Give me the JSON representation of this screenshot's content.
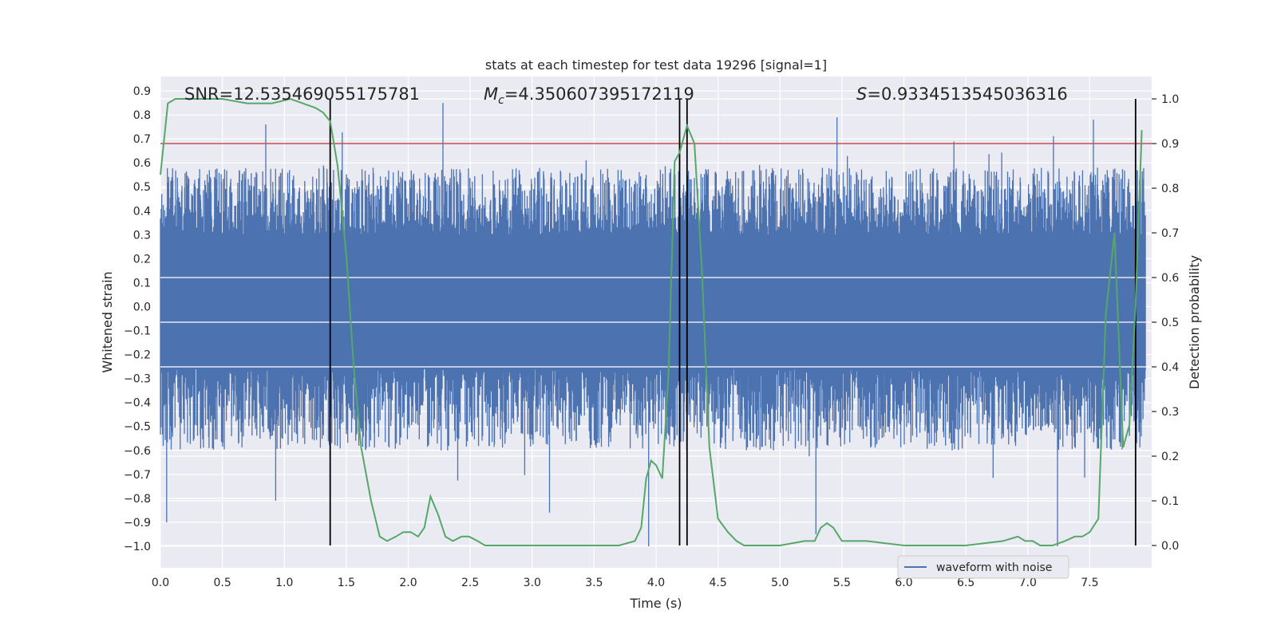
{
  "chart_data": {
    "type": "line",
    "title": "stats at each timestep for test data 19296 [signal=1]",
    "xlabel": "Time (s)",
    "ylabel": "Whitened strain",
    "y2label": "Detection probability",
    "xlim": [
      0.0,
      8.0
    ],
    "ylim": [
      -1.09,
      0.96
    ],
    "y2lim": [
      -0.05,
      1.05
    ],
    "x_ticks": [
      "0.0",
      "0.5",
      "1.0",
      "1.5",
      "2.0",
      "2.5",
      "3.0",
      "3.5",
      "4.0",
      "4.5",
      "5.0",
      "5.5",
      "6.0",
      "6.5",
      "7.0",
      "7.5"
    ],
    "y_ticks": [
      "0.9",
      "0.8",
      "0.7",
      "0.6",
      "0.5",
      "0.4",
      "0.3",
      "0.2",
      "0.1",
      "0.0",
      "−0.1",
      "−0.2",
      "−0.3",
      "−0.4",
      "−0.5",
      "−0.6",
      "−0.7",
      "−0.8",
      "−0.9",
      "−1.0"
    ],
    "y2_ticks": [
      "1.0",
      "0.9",
      "0.8",
      "0.7",
      "0.6",
      "0.5",
      "0.4",
      "0.3",
      "0.2",
      "0.1",
      "0.0"
    ],
    "annotations": {
      "snr": "SNR=12.535469055175781",
      "mc_symbol": "M",
      "mc_sub": "c",
      "mc_value": "=4.350607395172119",
      "s_symbol": "S",
      "s_value": "=0.9334513545036316"
    },
    "legend": {
      "label": "waveform with noise",
      "position": "lower-right"
    },
    "threshold_y2": 0.9,
    "vertical_lines_x": [
      1.37,
      4.19,
      4.25,
      7.87
    ],
    "waveform": {
      "name": "waveform with noise",
      "band_upper": 0.3,
      "band_lower": -0.26,
      "sample_peaks": [
        {
          "x": 0.05,
          "y": -0.9
        },
        {
          "x": 0.85,
          "y": 0.76
        },
        {
          "x": 0.93,
          "y": -0.81
        },
        {
          "x": 2.28,
          "y": 0.85
        },
        {
          "x": 2.6,
          "y": -0.54
        },
        {
          "x": 3.14,
          "y": -0.86
        },
        {
          "x": 3.94,
          "y": -1.0
        },
        {
          "x": 5.29,
          "y": -0.95
        },
        {
          "x": 5.46,
          "y": 0.79
        },
        {
          "x": 7.24,
          "y": -1.0
        },
        {
          "x": 7.53,
          "y": 0.78
        }
      ]
    },
    "series": [
      {
        "name": "Detection probability",
        "axis": "right",
        "x": [
          0.0,
          0.06,
          0.12,
          0.3,
          0.5,
          0.7,
          0.9,
          1.05,
          1.15,
          1.25,
          1.31,
          1.37,
          1.43,
          1.5,
          1.56,
          1.62,
          1.7,
          1.77,
          1.83,
          1.9,
          1.96,
          2.02,
          2.08,
          2.13,
          2.18,
          2.24,
          2.3,
          2.36,
          2.43,
          2.49,
          2.56,
          2.62,
          2.8,
          3.0,
          3.4,
          3.7,
          3.83,
          3.88,
          3.92,
          3.96,
          4.0,
          4.05,
          4.1,
          4.15,
          4.19,
          4.25,
          4.31,
          4.37,
          4.43,
          4.5,
          4.58,
          4.65,
          4.71,
          5.0,
          5.2,
          5.28,
          5.33,
          5.38,
          5.43,
          5.5,
          5.56,
          5.62,
          5.7,
          6.0,
          6.5,
          6.8,
          6.92,
          6.98,
          7.04,
          7.1,
          7.2,
          7.3,
          7.38,
          7.44,
          7.5,
          7.57,
          7.63,
          7.7,
          7.77,
          7.82,
          7.87,
          7.92
        ],
        "y": [
          0.83,
          0.99,
          1.0,
          1.0,
          1.0,
          0.99,
          0.99,
          1.0,
          0.99,
          0.98,
          0.97,
          0.95,
          0.85,
          0.65,
          0.4,
          0.22,
          0.1,
          0.02,
          0.01,
          0.02,
          0.03,
          0.03,
          0.02,
          0.04,
          0.11,
          0.07,
          0.02,
          0.01,
          0.02,
          0.02,
          0.01,
          0.0,
          0.0,
          0.0,
          0.0,
          0.0,
          0.01,
          0.04,
          0.15,
          0.19,
          0.18,
          0.15,
          0.38,
          0.86,
          0.88,
          0.94,
          0.9,
          0.62,
          0.22,
          0.06,
          0.03,
          0.01,
          0.0,
          0.0,
          0.01,
          0.01,
          0.04,
          0.05,
          0.04,
          0.01,
          0.01,
          0.01,
          0.01,
          0.0,
          0.0,
          0.01,
          0.02,
          0.01,
          0.01,
          0.0,
          0.0,
          0.01,
          0.02,
          0.02,
          0.03,
          0.06,
          0.52,
          0.7,
          0.22,
          0.27,
          0.54,
          0.93
        ]
      }
    ],
    "colors": {
      "background": "#eaeaf2",
      "grid": "#ffffff",
      "waveform": "#4c72b0",
      "probability": "#55a868",
      "threshold": "#c44e52",
      "vertical_line": "#000000",
      "text": "#262626"
    }
  }
}
